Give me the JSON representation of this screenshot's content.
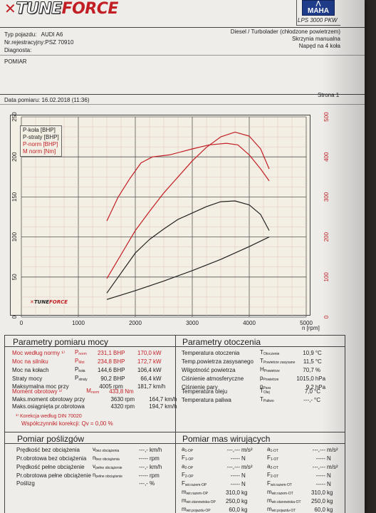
{
  "header": {
    "logo_prefix": "TUNE",
    "logo_suffix": "FORCE",
    "maha_logo": "MAHA",
    "machine": "LPS 3000 PKW",
    "vehicle_type_label": "Typ pojazdu:",
    "vehicle_type_value": "AUDI A6",
    "reg_label": "Nr.rejestracyjny:",
    "reg_value": "PSZ 70910",
    "diag_label": "Diagnosta:",
    "engine": "Diesel / Turbolader (chłodzone powietrzem)",
    "gearbox": "Skrzynia manualna",
    "drive": "Napęd na 4 koła",
    "mode": "POMIAR",
    "date_label": "Data pomiaru: 16.02.2018 (11:36)",
    "page_label": "Strona 1"
  },
  "chart_data": {
    "type": "line",
    "x_unit": "n [rpm]",
    "xlim": [
      0,
      5000
    ],
    "x_ticks": [
      "0",
      "1000",
      "2000",
      "3000",
      "4000",
      "5000"
    ],
    "y_left_ticks": [
      "0",
      "50",
      "100",
      "150",
      "200",
      "250"
    ],
    "y_left_lim": [
      0,
      250
    ],
    "y_right_ticks": [
      "0",
      "100",
      "200",
      "300",
      "400",
      "500"
    ],
    "y_right_lim": [
      0,
      500
    ],
    "grid": true,
    "legend": [
      "P-koła [BHP]",
      "P-straty [BHP]",
      "P-norm [BHP]",
      "M norm [Nm]"
    ],
    "series": [
      {
        "name": "P-norm [BHP]",
        "axis": "left",
        "color": "#c21f24",
        "x": [
          1500,
          1750,
          2000,
          2250,
          2500,
          2750,
          3000,
          3250,
          3500,
          3750,
          4000,
          4200,
          4350
        ],
        "y": [
          48,
          78,
          108,
          132,
          155,
          175,
          195,
          212,
          225,
          231,
          226,
          210,
          185
        ]
      },
      {
        "name": "M norm [Nm]",
        "axis": "right",
        "color": "#c21f24",
        "x": [
          1500,
          1700,
          1900,
          2100,
          2300,
          2600,
          3000,
          3300,
          3600,
          3800,
          4000,
          4200,
          4350
        ],
        "y": [
          240,
          300,
          345,
          385,
          400,
          405,
          420,
          430,
          434,
          430,
          405,
          370,
          340
        ]
      },
      {
        "name": "P-koła [BHP]",
        "axis": "left",
        "color": "#222222",
        "x": [
          1500,
          1750,
          2000,
          2250,
          2500,
          2750,
          3000,
          3250,
          3500,
          3750,
          4000,
          4200,
          4350
        ],
        "y": [
          30,
          55,
          80,
          97,
          110,
          122,
          130,
          138,
          144,
          145,
          140,
          128,
          108
        ]
      },
      {
        "name": "P-straty [BHP]",
        "axis": "left",
        "color": "#222222",
        "x": [
          1500,
          2000,
          2500,
          3000,
          3500,
          4000,
          4350
        ],
        "y": [
          22,
          33,
          45,
          58,
          72,
          88,
          100
        ]
      }
    ]
  },
  "power": {
    "title": "Parametry pomiaru mocy",
    "rows": [
      {
        "label": "Moc według normy ¹⁾",
        "sym": "P",
        "sub": "norm",
        "v1": "231,1",
        "u1": "BHP",
        "v2": "170,0",
        "u2": "kW",
        "red": true
      },
      {
        "label": "Moc na silniku",
        "sym": "P",
        "sub": "Mot",
        "v1": "234,8",
        "u1": "BHP",
        "v2": "172,7",
        "u2": "kW",
        "red": true
      },
      {
        "label": "Moc na kołach",
        "sym": "P",
        "sub": "koła",
        "v1": "144,6",
        "u1": "BHP",
        "v2": "106,4",
        "u2": "kW",
        "red": false
      },
      {
        "label": "Straty mocy",
        "sym": "P",
        "sub": "straty",
        "v1": "90,2",
        "u1": "BHP",
        "v2": "66,4",
        "u2": "kW",
        "red": false
      },
      {
        "label": "Maksymalna moc przy",
        "sym": "",
        "sub": "",
        "v1": "4005",
        "u1": "rpm",
        "v2": "181,7",
        "u2": "km/h",
        "red": false
      }
    ],
    "torque_rows": [
      {
        "label": "Moment obrotowy ¹⁾",
        "sym": "M",
        "sub": "norm",
        "v1": "433,8",
        "u1": "Nm",
        "v2": "",
        "u2": "",
        "red": true
      },
      {
        "label": "Maks.moment obrotowy przy",
        "sym": "",
        "sub": "",
        "v1": "3630",
        "u1": "rpm",
        "v2": "164,7",
        "u2": "km/h",
        "red": false
      },
      {
        "label": "Maks.osiągnięta pr.obrotowa",
        "sym": "",
        "sub": "",
        "v1": "4320",
        "u1": "rpm",
        "v2": "194,7",
        "u2": "km/h",
        "red": false
      }
    ],
    "correction": "¹⁾ Korekcja według DIN 70020",
    "factor": "Współczynniki korekcji: Qv = 0,00 %"
  },
  "environment": {
    "title": "Parametry otoczenia",
    "rows": [
      {
        "label": "Temperatura otoczenia",
        "sym": "T",
        "sub": "Otoczenie",
        "v": "10,9",
        "u": "°C"
      },
      {
        "label": "Temp.powietrza zasysanego",
        "sym": "T",
        "sub": "Powietrze zasysane",
        "v": "11,5",
        "u": "°C"
      },
      {
        "label": "Wilgotność powietrza",
        "sym": "H",
        "sub": "Powietrze",
        "v": "70,7",
        "u": "%"
      },
      {
        "label": "Ciśnienie atmosferyczne",
        "sym": "p",
        "sub": "Powietrze",
        "v": "1015,0",
        "u": "hPa"
      },
      {
        "label": "Ciśnienie pary",
        "sym": "p",
        "sub": "Para",
        "v": "9,2",
        "u": "hPa"
      }
    ],
    "rows2": [
      {
        "label": "Temperatura oleju",
        "sym": "T",
        "sub": "Olej",
        "v": "7,0",
        "u": "°C"
      },
      {
        "label": "Temperatura paliwa",
        "sym": "T",
        "sub": "Paliwo",
        "v": "---,-",
        "u": "°C"
      }
    ]
  },
  "slip": {
    "title": "Pomiar poślizgów",
    "rows": [
      {
        "label": "Prędkość bez obciążenia",
        "sym": "v",
        "sub": "bez obciążenia",
        "v": "---,-",
        "u": "km/h"
      },
      {
        "label": "Pr.obrotowa bez obciążenia",
        "sym": "n",
        "sub": "bez obciążenia",
        "v": "-----",
        "u": "rpm"
      },
      {
        "label": "Prędkość pełne obciążenie",
        "sym": "v",
        "sub": "pełne obciążenie",
        "v": "---,-",
        "u": "km/h"
      },
      {
        "label": "Pr.obrotowa pełne obciążenie",
        "sym": "n",
        "sub": "pełne obciążenie",
        "v": "-----",
        "u": "rpm"
      },
      {
        "label": "Poślizg",
        "sym": "",
        "sub": "",
        "v": "---,-",
        "u": "%"
      }
    ]
  },
  "masses": {
    "title": "Pomiar mas wirujących",
    "left": [
      {
        "sym": "a",
        "sub": "1-OP",
        "v": "---,---",
        "u": "m/s²"
      },
      {
        "sym": "F",
        "sub": "1-OP",
        "v": "-----",
        "u": "N"
      },
      {
        "sym": "a",
        "sub": "2-OP",
        "v": "---,---",
        "u": "m/s²"
      },
      {
        "sym": "F",
        "sub": "2-OP",
        "v": "-----",
        "u": "N"
      },
      {
        "sym": "F",
        "sub": "wir.razem-OP",
        "v": "-----",
        "u": "N"
      },
      {
        "sym": "m",
        "sub": "wir.razem-OP",
        "v": "310,0",
        "u": "kg"
      },
      {
        "sym": "m",
        "sub": "wir.stanowiska-OP",
        "v": "250,0",
        "u": "kg"
      },
      {
        "sym": "m",
        "sub": "wir.pojazdu-OP",
        "v": "60,0",
        "u": "kg"
      }
    ],
    "right": [
      {
        "sym": "a",
        "sub": "1-OT",
        "v": "---,---",
        "u": "m/s²"
      },
      {
        "sym": "F",
        "sub": "1-OT",
        "v": "-----",
        "u": "N"
      },
      {
        "sym": "a",
        "sub": "2-OT",
        "v": "---,---",
        "u": "m/s²"
      },
      {
        "sym": "F",
        "sub": "2-OT",
        "v": "-----",
        "u": "N"
      },
      {
        "sym": "F",
        "sub": "wir.razem-OT",
        "v": "-----",
        "u": "N"
      },
      {
        "sym": "m",
        "sub": "wir.razem-OT",
        "v": "310,0",
        "u": "kg"
      },
      {
        "sym": "m",
        "sub": "wir.stanowiska-OT",
        "v": "250,0",
        "u": "kg"
      },
      {
        "sym": "m",
        "sub": "wir.pojazdu-OT",
        "v": "60,0",
        "u": "kg"
      }
    ]
  }
}
